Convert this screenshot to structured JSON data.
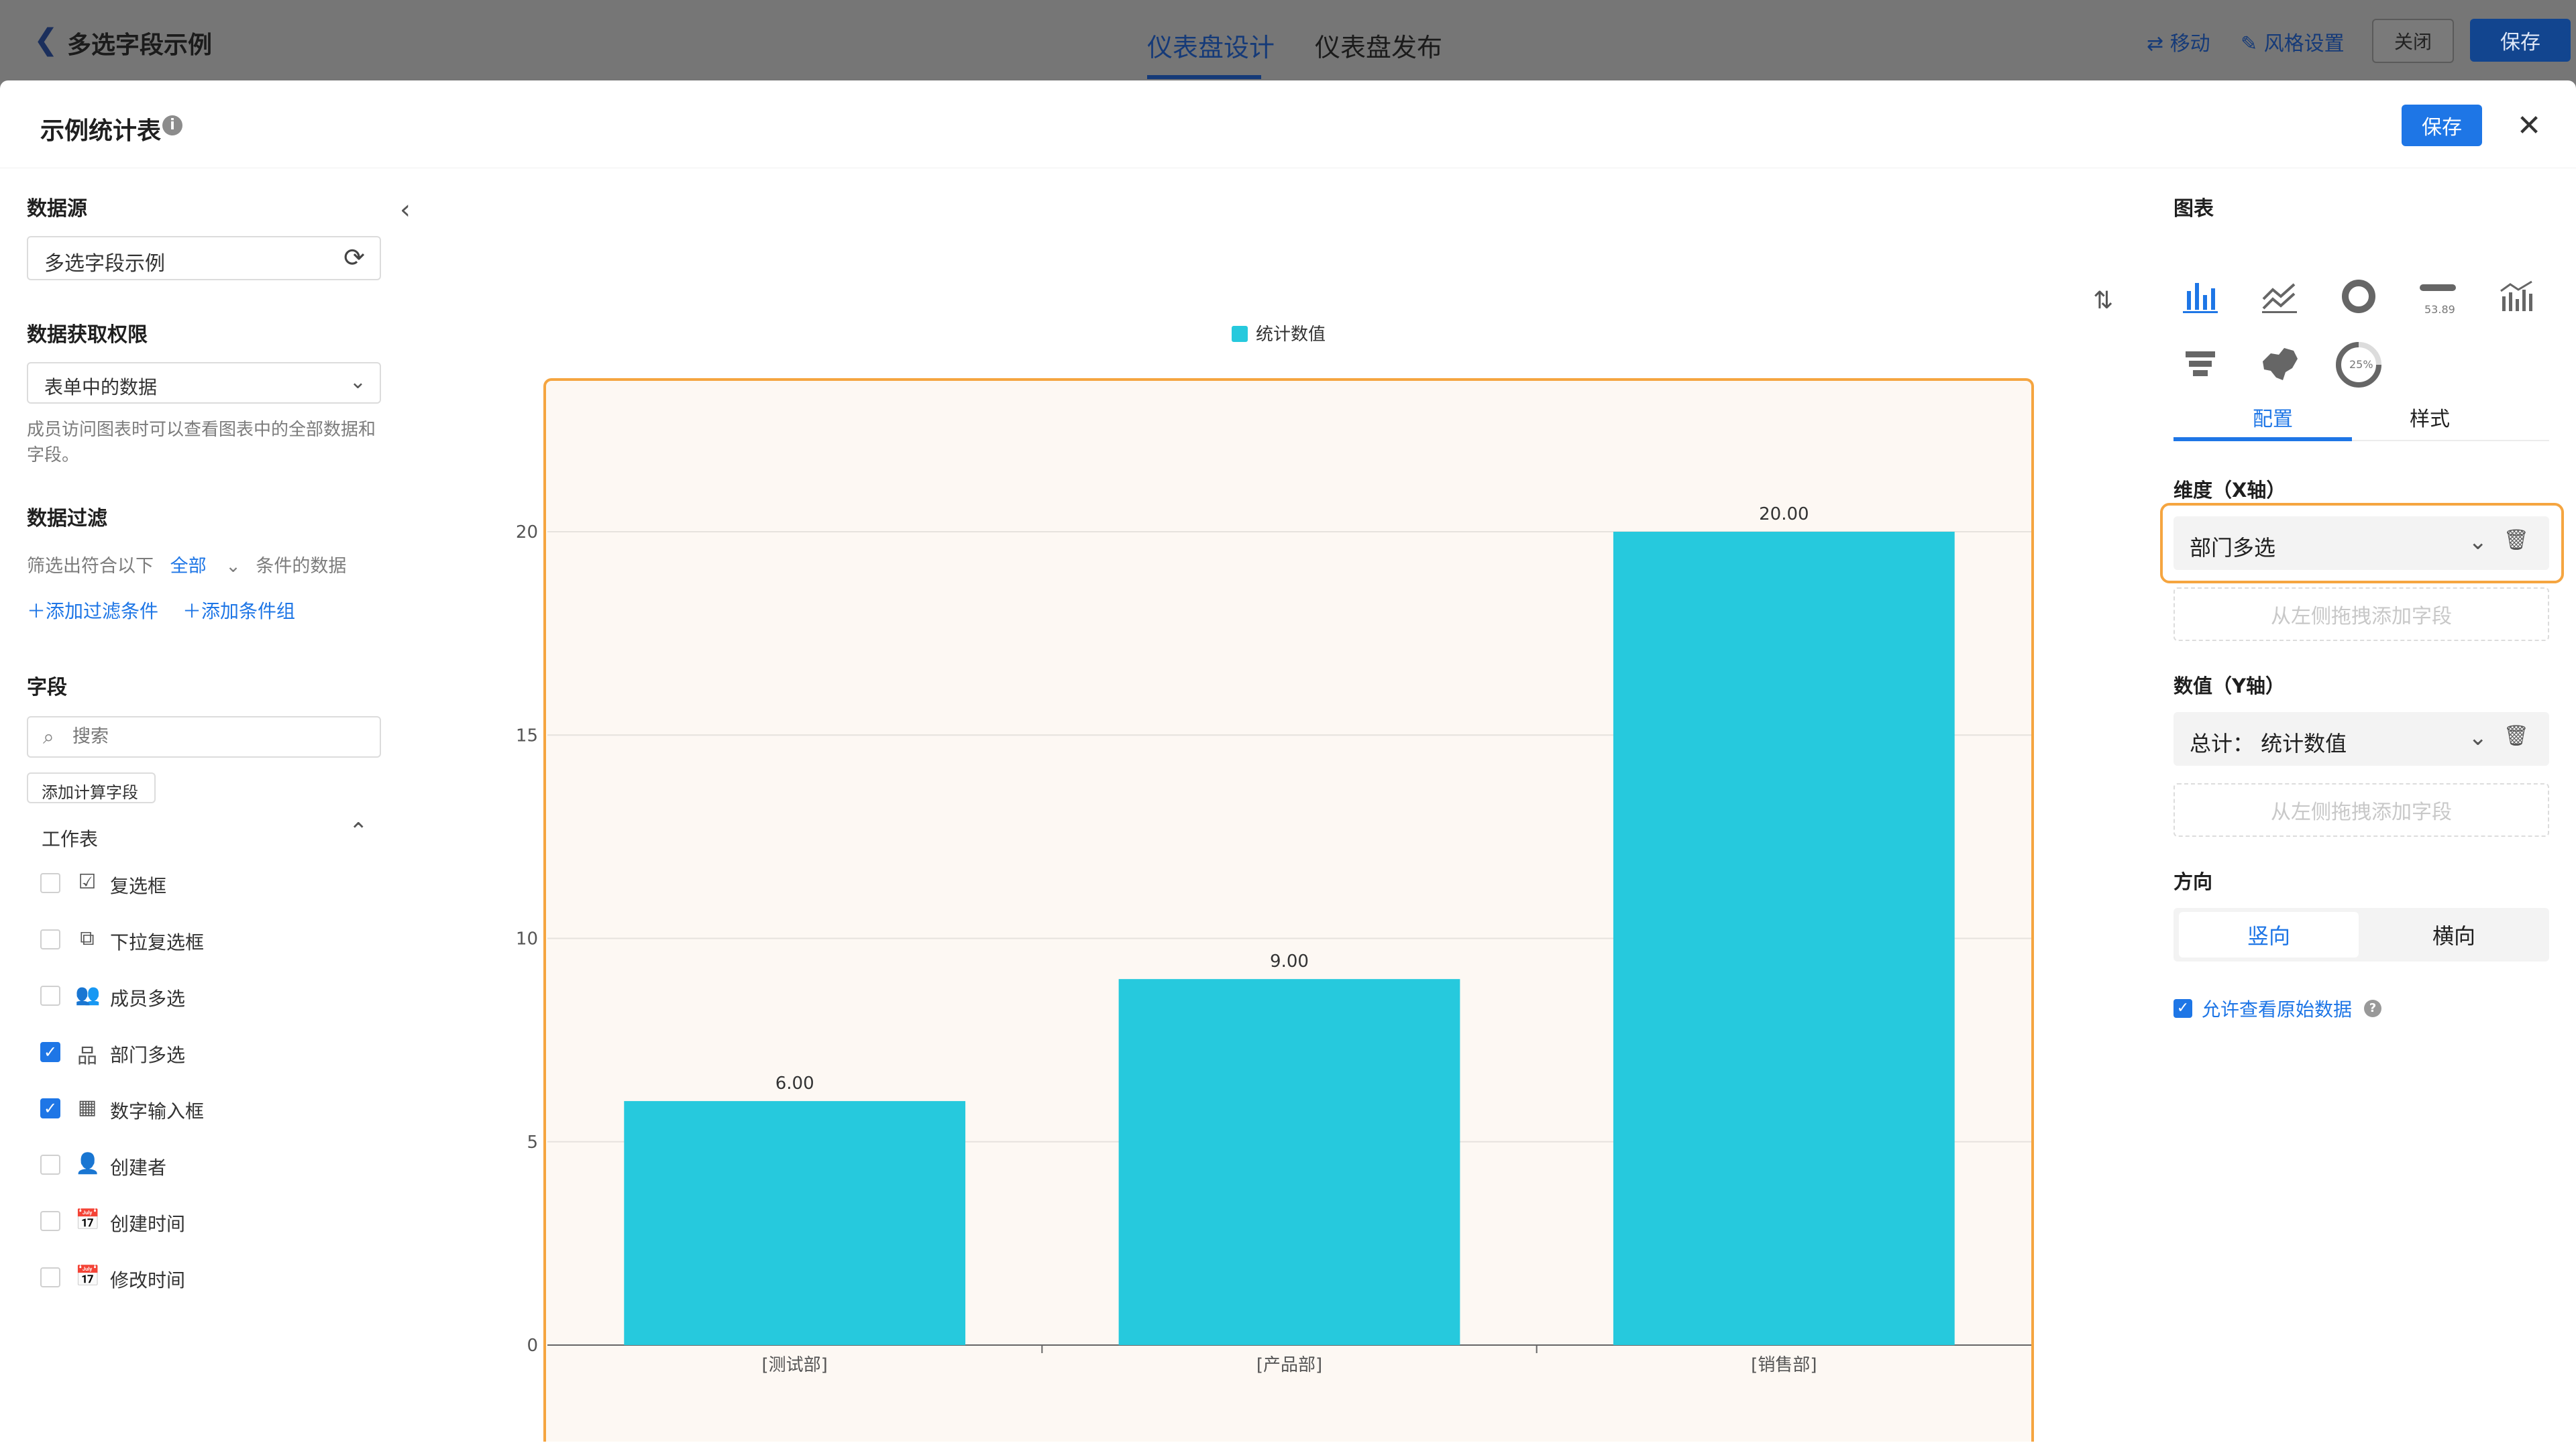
{
  "topbar": {
    "back_icon": "chevron-left-icon",
    "app_title": "多选字段示例",
    "tabs": [
      {
        "label": "仪表盘设计",
        "active": true
      },
      {
        "label": "仪表盘发布",
        "active": false
      }
    ],
    "tools": [
      {
        "icon": "swap-icon",
        "label": "移动"
      },
      {
        "icon": "brush-icon",
        "label": "风格设置"
      }
    ],
    "close_label": "关闭",
    "save_label": "保存"
  },
  "modal": {
    "title": "示例统计表",
    "info_icon": "info-icon",
    "save_label": "保存",
    "close_icon": "close-icon"
  },
  "left": {
    "datasource": {
      "title": "数据源",
      "value": "多选字段示例",
      "refresh_icon": "refresh-icon"
    },
    "permission": {
      "title": "数据获取权限",
      "value": "表单中的数据",
      "help": "成员访问图表时可以查看图表中的全部数据和字段。"
    },
    "filter": {
      "title": "数据过滤",
      "prefix": "筛选出符合以下",
      "scope": "全部",
      "suffix": "条件的数据",
      "add_condition": "添加过滤条件",
      "add_group": "添加条件组"
    },
    "fields": {
      "title": "字段",
      "search_placeholder": "搜索",
      "add_calc": "添加计算字段",
      "group_label": "工作表",
      "items": [
        {
          "label": "复选框",
          "icon": "checkbox-icon",
          "checked": false,
          "glyph": "☑"
        },
        {
          "label": "下拉复选框",
          "icon": "multi-dropdown-icon",
          "checked": false,
          "glyph": "⧉"
        },
        {
          "label": "成员多选",
          "icon": "members-icon",
          "checked": false,
          "glyph": "👥"
        },
        {
          "label": "部门多选",
          "icon": "department-icon",
          "checked": true,
          "glyph": "品"
        },
        {
          "label": "数字输入框",
          "icon": "number-input-icon",
          "checked": true,
          "glyph": "▦"
        },
        {
          "label": "创建者",
          "icon": "user-icon",
          "checked": false,
          "glyph": "👤"
        },
        {
          "label": "创建时间",
          "icon": "calendar-icon",
          "checked": false,
          "glyph": "📅"
        },
        {
          "label": "修改时间",
          "icon": "calendar-icon",
          "checked": false,
          "glyph": "📅"
        }
      ]
    }
  },
  "chart_data": {
    "type": "bar",
    "categories": [
      "[测试部]",
      "[产品部]",
      "[销售部]"
    ],
    "series": [
      {
        "name": "统计数值",
        "values": [
          6,
          9,
          20
        ]
      }
    ],
    "data_labels": [
      "6.00",
      "9.00",
      "20.00"
    ],
    "y_ticks": [
      0,
      5,
      10,
      15,
      20
    ],
    "ylim": [
      0,
      23.5
    ],
    "grid": true,
    "legend": "top-center",
    "bar_color": "#26c9dd",
    "plot_bg": "#fdf8f3",
    "frame_color": "#f5a540"
  },
  "right": {
    "title": "图表",
    "chart_types": [
      {
        "icon": "bar-chart-icon",
        "selected": true
      },
      {
        "icon": "line-chart-icon",
        "selected": false
      },
      {
        "icon": "donut-chart-icon",
        "selected": false
      },
      {
        "icon": "indicator-card-icon",
        "selected": false,
        "text": "53.89"
      },
      {
        "icon": "combo-chart-icon",
        "selected": false
      },
      {
        "icon": "funnel-chart-icon",
        "selected": false
      },
      {
        "icon": "map-chart-icon",
        "selected": false
      },
      {
        "icon": "gauge-chart-icon",
        "selected": false,
        "text": "25%"
      }
    ],
    "tabs": [
      {
        "label": "配置",
        "active": true
      },
      {
        "label": "样式",
        "active": false
      }
    ],
    "dimension": {
      "title": "维度（X轴）",
      "value": "部门多选",
      "drop_hint": "从左侧拖拽添加字段"
    },
    "measure": {
      "title": "数值（Y轴）",
      "value": "总计：  统计数值",
      "drop_hint": "从左侧拖拽添加字段"
    },
    "direction": {
      "title": "方向",
      "options": [
        {
          "label": "竖向",
          "active": true
        },
        {
          "label": "横向",
          "active": false
        }
      ]
    },
    "allow_raw": {
      "label": "允许查看原始数据",
      "checked": true
    }
  },
  "colors": {
    "accent": "#1e76e6",
    "highlight": "#f5a540"
  }
}
